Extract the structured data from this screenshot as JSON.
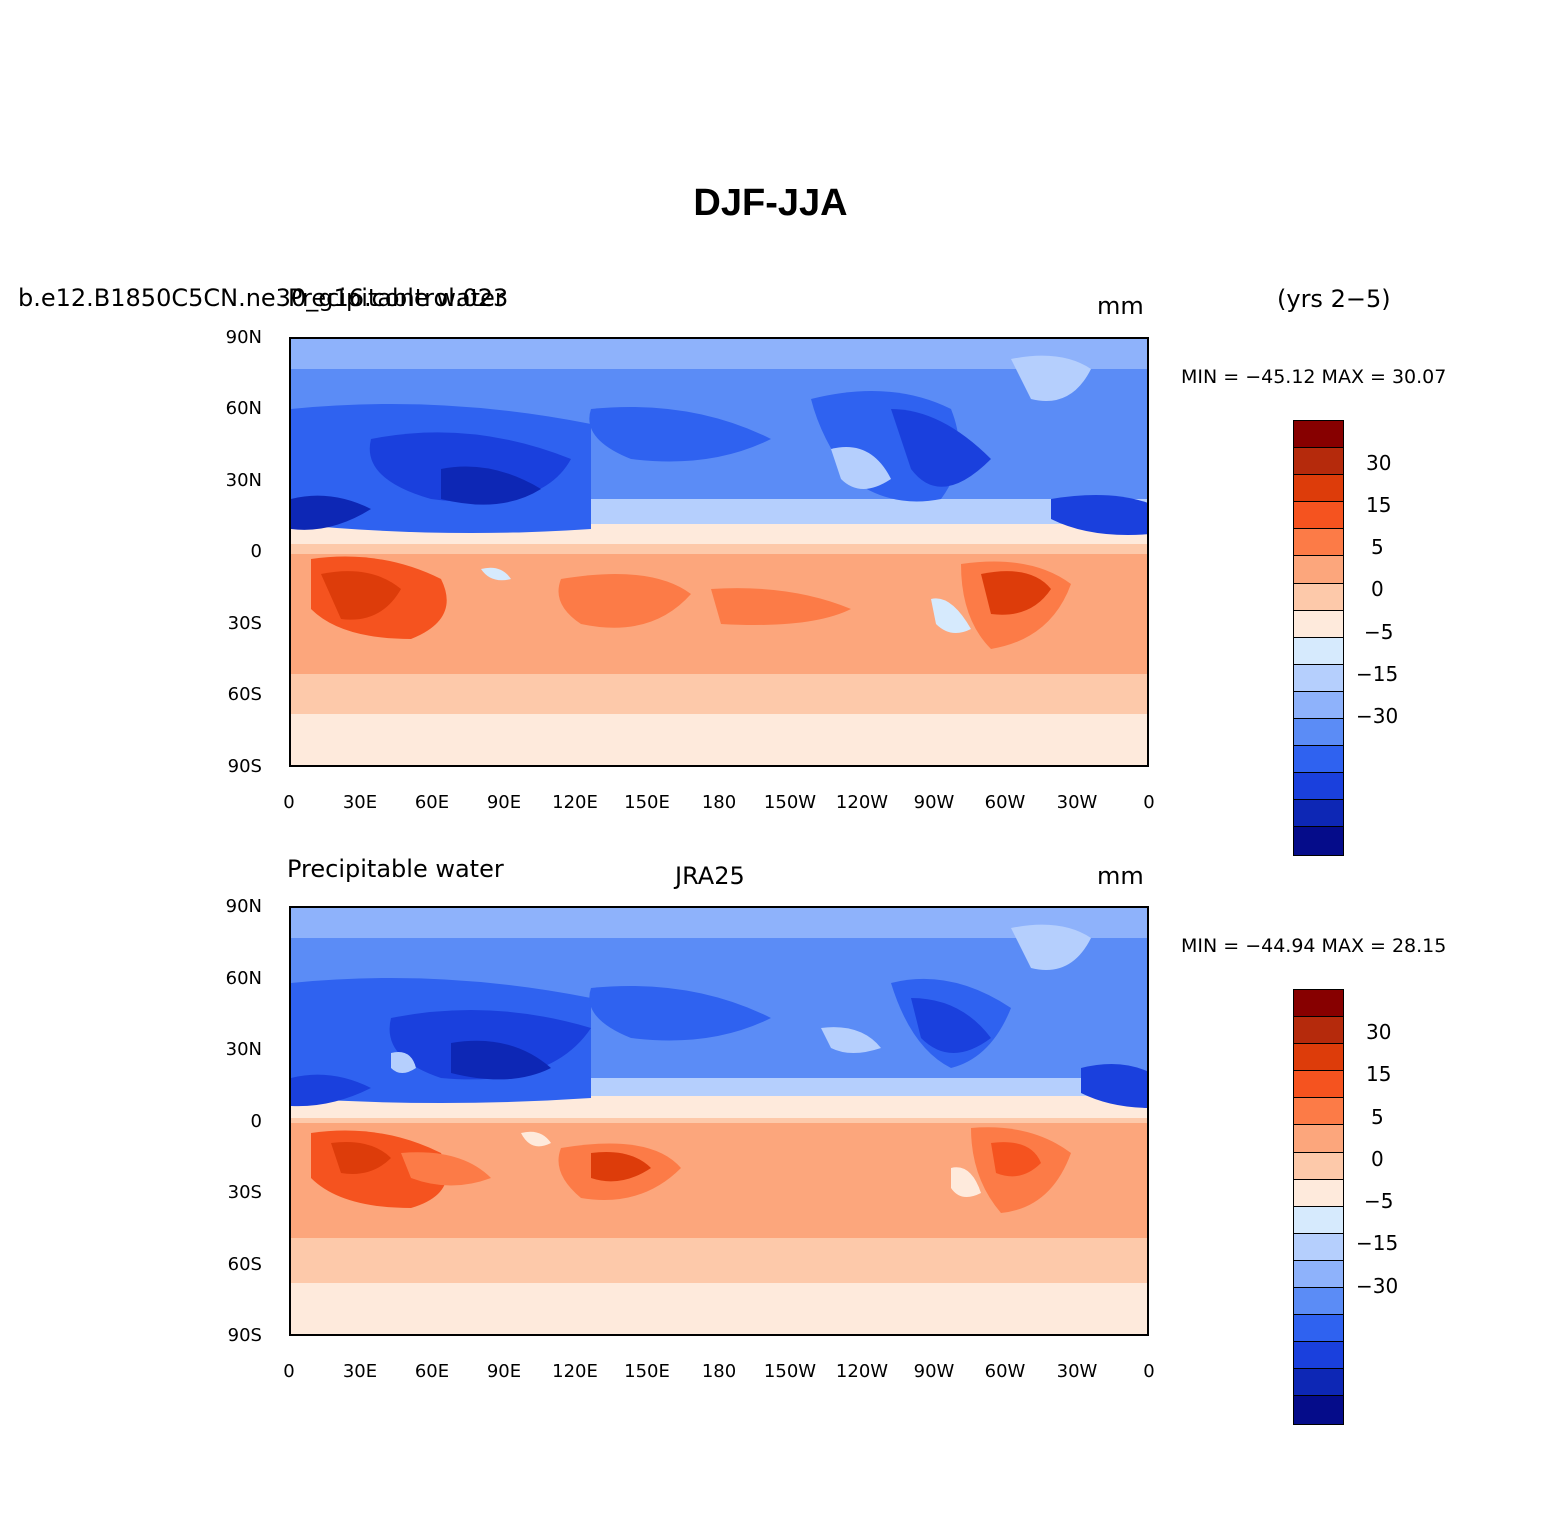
{
  "figure": {
    "title": "DJF-JJA",
    "season_note": "(yrs 2−5)"
  },
  "panels": [
    {
      "left_title": "b.e12.B1850C5CN.ne30_g16.control.023",
      "left_title_overlap": "Precipitable water",
      "center_title": "",
      "units": "mm",
      "min_max": "MIN = −45.12  MAX =   30.07"
    },
    {
      "left_title": "Precipitable water",
      "center_title": "JRA25",
      "units": "mm",
      "min_max": "MIN = −44.94  MAX =   28.15"
    }
  ],
  "axes": {
    "lat_ticks": [
      "90N",
      "60N",
      "30N",
      "0",
      "30S",
      "60S",
      "90S"
    ],
    "lon_ticks": [
      "0",
      "30E",
      "60E",
      "90E",
      "120E",
      "150E",
      "180",
      "150W",
      "120W",
      "90W",
      "60W",
      "30W",
      "0"
    ]
  },
  "colorbar": {
    "labels": [
      "30",
      "15",
      "5",
      "0",
      "−5",
      "−15",
      "−30"
    ],
    "colors": [
      "#870000",
      "#b52a0c",
      "#dd3c0a",
      "#f5531f",
      "#fc7b47",
      "#fca67c",
      "#fdc9aa",
      "#feeadc",
      "#d6eafd",
      "#b5cffd",
      "#8eb2fb",
      "#5b8cf6",
      "#2f62f0",
      "#1a40dd",
      "#0d27b5",
      "#050c8a"
    ]
  },
  "chart_data": {
    "type": "heatmap",
    "variable": "Precipitable water",
    "units": "mm",
    "contour_levels": [
      -40,
      -35,
      -30,
      -25,
      -20,
      -15,
      -10,
      -5,
      0,
      5,
      10,
      15,
      20,
      25,
      30,
      35
    ],
    "panels": [
      {
        "source": "b.e12.B1850C5CN.ne30_g16.control.023",
        "min": -45.12,
        "max": 30.07
      },
      {
        "source": "JRA25",
        "min": -44.94,
        "max": 28.15
      }
    ]
  }
}
